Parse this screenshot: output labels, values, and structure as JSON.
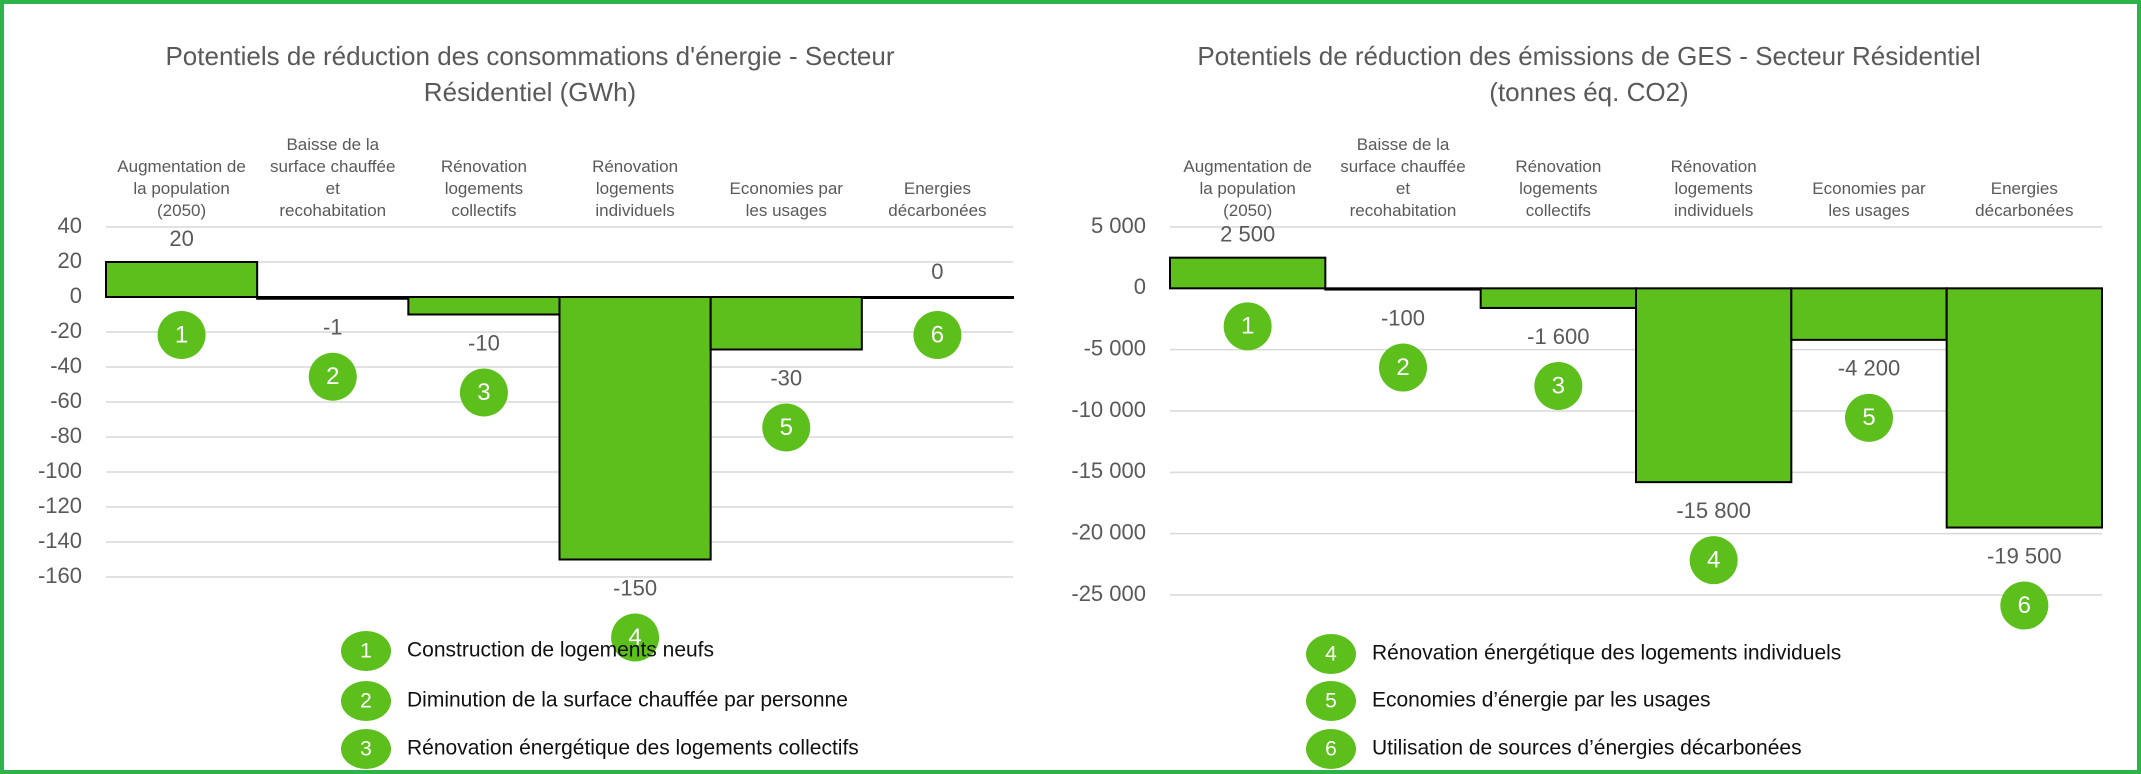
{
  "chart_data": [
    {
      "type": "bar",
      "title": "Potentiels de réduction des consommations d'énergie - Secteur Résidentiel (GWh)",
      "categories": [
        "Augmentation de la population (2050)",
        "Baisse de la surface chauffée et recohabitation",
        "Rénovation logements collectifs",
        "Rénovation logements individuels",
        "Economies par les usages",
        "Energies décarbonées"
      ],
      "values": [
        20,
        -1,
        -10,
        -150,
        -30,
        0
      ],
      "badges": [
        "1",
        "2",
        "3",
        "4",
        "5",
        "6"
      ],
      "color": "#5cbf1c",
      "ylim": [
        -160,
        40
      ],
      "yticks": [
        40,
        20,
        0,
        -20,
        -40,
        -60,
        -80,
        -100,
        -120,
        -140,
        -160
      ],
      "grid": true,
      "legend": [
        {
          "badge": "1",
          "label": "Construction de logements neufs"
        },
        {
          "badge": "2",
          "label": "Diminution de la surface chauffée par personne"
        },
        {
          "badge": "3",
          "label": "Rénovation énergétique des logements collectifs"
        }
      ]
    },
    {
      "type": "bar",
      "title": "Potentiels de réduction des émissions de GES - Secteur Résidentiel (tonnes éq. CO2)",
      "categories": [
        "Augmentation de la population (2050)",
        "Baisse de la surface chauffée et recohabitation",
        "Rénovation logements collectifs",
        "Rénovation logements individuels",
        "Economies par les usages",
        "Energies décarbonées"
      ],
      "values": [
        2500,
        -100,
        -1600,
        -15800,
        -4200,
        -19500
      ],
      "value_labels": [
        "2 500",
        "-100",
        "-1 600",
        "-15 800",
        "-4 200",
        "-19 500"
      ],
      "badges": [
        "1",
        "2",
        "3",
        "4",
        "5",
        "6"
      ],
      "color": "#5cbf1c",
      "ylim": [
        -25000,
        5000
      ],
      "yticks": [
        {
          "value": 5000,
          "label": "5 000"
        },
        0,
        {
          "value": -5000,
          "label": "-5 000"
        },
        {
          "value": -10000,
          "label": "-10 000"
        },
        {
          "value": -15000,
          "label": "-15 000"
        },
        {
          "value": -20000,
          "label": "-20 000"
        },
        {
          "value": -25000,
          "label": "-25 000"
        }
      ],
      "grid": true,
      "legend": [
        {
          "badge": "4",
          "label": "Rénovation énergétique des logements individuels"
        },
        {
          "badge": "5",
          "label": "Economies d’énergie par les usages"
        },
        {
          "badge": "6",
          "label": "Utilisation de sources d’énergies décarbonées"
        }
      ]
    }
  ]
}
